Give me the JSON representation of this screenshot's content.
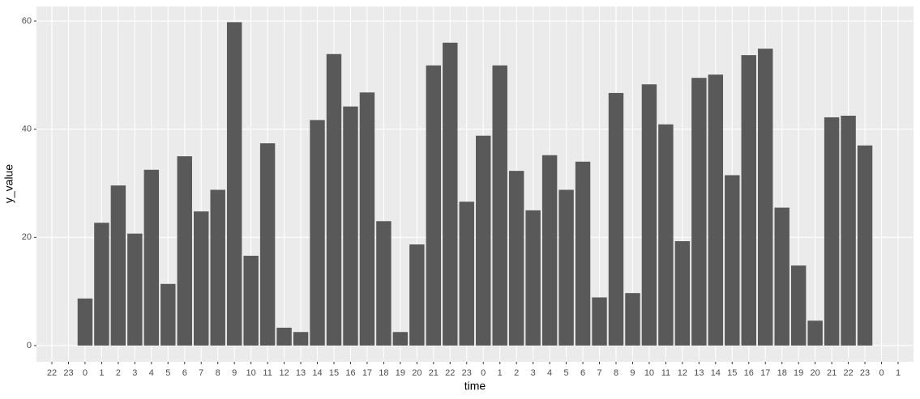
{
  "chart_data": {
    "type": "bar",
    "x_label": "time",
    "y_label": "y_value",
    "categories": [
      "22",
      "23",
      "0",
      "1",
      "2",
      "3",
      "4",
      "5",
      "6",
      "7",
      "8",
      "9",
      "10",
      "11",
      "12",
      "13",
      "14",
      "15",
      "16",
      "17",
      "18",
      "19",
      "20",
      "21",
      "22",
      "23",
      "0",
      "1",
      "2",
      "3",
      "4",
      "5",
      "6",
      "7",
      "8",
      "9",
      "10",
      "11",
      "12",
      "13",
      "14",
      "15",
      "16",
      "17",
      "18",
      "19",
      "20",
      "21",
      "22",
      "23",
      "0",
      "1"
    ],
    "values": [
      null,
      null,
      8.7,
      22.7,
      29.6,
      20.7,
      32.5,
      11.4,
      35,
      24.8,
      28.8,
      59.8,
      16.6,
      37.4,
      3.3,
      2.5,
      41.7,
      53.9,
      44.2,
      46.8,
      23,
      2.5,
      18.7,
      51.8,
      56,
      26.6,
      38.8,
      51.8,
      32.3,
      25,
      35.2,
      28.8,
      34,
      8.9,
      46.7,
      9.7,
      48.3,
      40.9,
      19.3,
      49.5,
      50.1,
      31.5,
      53.7,
      54.9,
      25.5,
      14.8,
      4.6,
      42.2,
      42.5,
      37,
      null,
      null
    ],
    "color": "#595959",
    "ylim": [
      -3,
      62.7
    ],
    "yticks": [
      0,
      20,
      40,
      60
    ],
    "grid": true
  }
}
